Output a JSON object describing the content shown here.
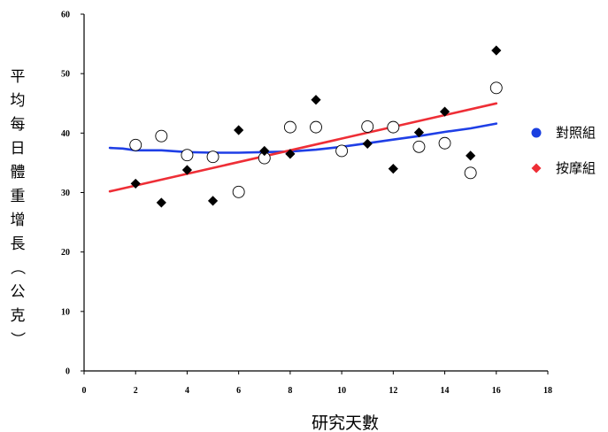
{
  "chart_data": {
    "type": "scatter",
    "title": "",
    "xlabel": "研究天數",
    "ylabel": "平均每日體重增長（公克）",
    "xlim": [
      0,
      18
    ],
    "ylim": [
      0,
      60
    ],
    "x_ticks": [
      0,
      2,
      4,
      6,
      8,
      10,
      12,
      14,
      16,
      18
    ],
    "y_ticks": [
      0,
      10,
      20,
      30,
      40,
      50,
      60
    ],
    "grid": false,
    "legend_position": "right",
    "series": [
      {
        "name": "對照組",
        "marker": "open-circle",
        "legend_color": "#1a3fe0",
        "trend_color": "#1f3fe6",
        "x": [
          2,
          3,
          4,
          5,
          6,
          7,
          8,
          9,
          10,
          11,
          12,
          13,
          14,
          15,
          16
        ],
        "y": [
          38,
          39.5,
          36.3,
          36,
          30.1,
          35.8,
          41,
          41,
          37,
          41.1,
          41,
          37.7,
          38.3,
          33.3,
          47.6
        ],
        "trend": {
          "x": [
            1,
            1.5,
            2,
            3,
            4,
            5,
            6,
            7,
            8,
            9,
            10,
            11,
            12,
            13,
            14,
            15,
            16
          ],
          "y": [
            37.5,
            37.4,
            37.1,
            37.1,
            36.8,
            36.7,
            36.7,
            36.8,
            36.9,
            37.2,
            37.7,
            38.3,
            38.9,
            39.5,
            40.2,
            40.8,
            41.6
          ]
        }
      },
      {
        "name": "按摩組",
        "marker": "filled-diamond",
        "legend_color": "#ee2e36",
        "trend_color": "#ee2e36",
        "x": [
          2,
          3,
          4,
          5,
          6,
          7,
          8,
          9,
          11,
          12,
          13,
          14,
          15,
          16
        ],
        "y": [
          31.5,
          28.3,
          33.8,
          28.6,
          40.5,
          37,
          36.5,
          45.6,
          38.2,
          34,
          40.1,
          43.6,
          36.2,
          53.9
        ],
        "trend": {
          "x": [
            1,
            16
          ],
          "y": [
            30.2,
            45
          ]
        }
      }
    ]
  }
}
